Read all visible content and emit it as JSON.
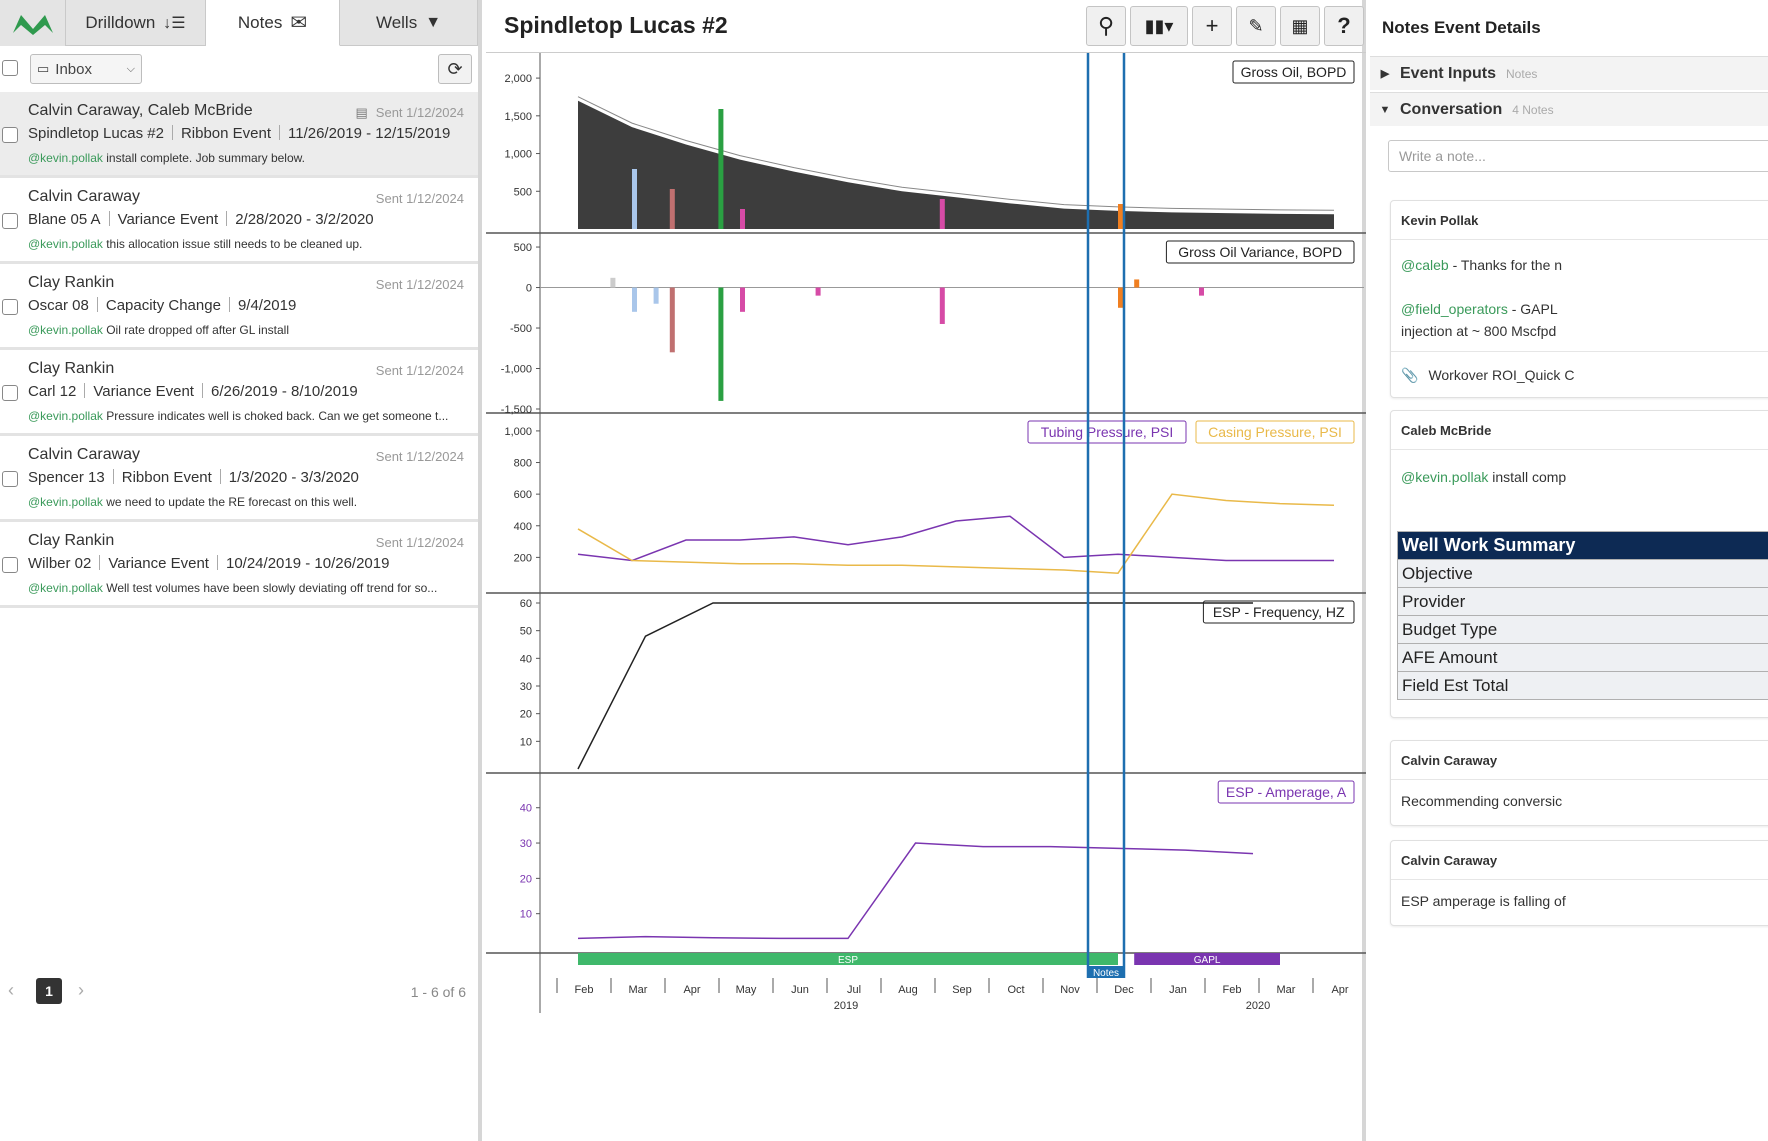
{
  "tabs": {
    "drilldown": "Drilldown",
    "notes": "Notes",
    "wells": "Wells"
  },
  "filter": {
    "inbox": "Inbox"
  },
  "notes": [
    {
      "who": "Calvin Caraway, Caleb McBride",
      "sent": "Sent 1/12/2024",
      "well": "Spindletop Lucas #2",
      "type": "Ribbon Event",
      "dates": "11/26/2019 - 12/15/2019",
      "mention": "@kevin.pollak",
      "msg": " install complete. Job summary below."
    },
    {
      "who": "Calvin Caraway",
      "sent": "Sent 1/12/2024",
      "well": "Blane 05 A",
      "type": "Variance Event",
      "dates": "2/28/2020 - 3/2/2020",
      "mention": "@kevin.pollak",
      "msg": " this allocation issue still needs to be cleaned up."
    },
    {
      "who": "Clay Rankin",
      "sent": "Sent 1/12/2024",
      "well": "Oscar 08",
      "type": "Capacity Change",
      "dates": "9/4/2019",
      "mention": "@kevin.pollak",
      "msg": " Oil rate dropped off after GL install"
    },
    {
      "who": "Clay Rankin",
      "sent": "Sent 1/12/2024",
      "well": "Carl 12",
      "type": "Variance Event",
      "dates": "6/26/2019 - 8/10/2019",
      "mention": "@kevin.pollak",
      "msg": " Pressure indicates well is choked back. Can we get someone t..."
    },
    {
      "who": "Calvin Caraway",
      "sent": "Sent 1/12/2024",
      "well": "Spencer 13",
      "type": "Ribbon Event",
      "dates": "1/3/2020 - 3/3/2020",
      "mention": "@kevin.pollak",
      "msg": " we need to update the RE forecast on this well."
    },
    {
      "who": "Clay Rankin",
      "sent": "Sent 1/12/2024",
      "well": "Wilber 02",
      "type": "Variance Event",
      "dates": "10/24/2019 - 10/26/2019",
      "mention": "@kevin.pollak",
      "msg": " Well test volumes have been slowly deviating off trend for so..."
    }
  ],
  "pager": {
    "page": "1",
    "count": "1 - 6 of 6"
  },
  "center": {
    "title": "Spindletop Lucas #2"
  },
  "chart_data": [
    {
      "type": "area",
      "title": "Gross Oil, BOPD",
      "yticks": [
        500,
        1000,
        1500,
        2000
      ],
      "ylim": [
        0,
        2200
      ],
      "x_months": [
        1,
        2,
        3,
        4,
        5,
        6,
        7,
        8,
        9,
        10,
        11,
        12,
        13,
        14,
        15
      ],
      "values": [
        1700,
        1350,
        1120,
        920,
        760,
        620,
        500,
        420,
        340,
        270,
        240,
        220,
        210,
        200,
        195
      ]
    },
    {
      "type": "bar",
      "title": "Gross Oil Variance, BOPD",
      "yticks": [
        500,
        0,
        -500,
        -1000,
        -1500
      ],
      "ylim": [
        -1500,
        550
      ]
    },
    {
      "type": "line",
      "series": [
        {
          "name": "Tubing Pressure, PSI",
          "color": "#7a35b0",
          "values": [
            220,
            180,
            310,
            310,
            330,
            280,
            330,
            430,
            460,
            200,
            220,
            200,
            180,
            180,
            180
          ]
        },
        {
          "name": "Casing Pressure, PSI",
          "color": "#e9b949",
          "values": [
            380,
            180,
            170,
            160,
            160,
            150,
            150,
            140,
            130,
            120,
            100,
            600,
            560,
            540,
            530
          ]
        }
      ],
      "yticks": [
        200,
        400,
        600,
        800,
        1000
      ],
      "ylim": [
        0,
        1050
      ]
    },
    {
      "type": "line",
      "title": "ESP - Frequency, HZ",
      "yticks": [
        10,
        20,
        30,
        40,
        50,
        60
      ],
      "ylim": [
        0,
        60
      ],
      "values": [
        0,
        48,
        60,
        60,
        60,
        60,
        60,
        60,
        60,
        60,
        60
      ]
    },
    {
      "type": "line",
      "title": "ESP - Amperage, A",
      "yticks": [
        10,
        20,
        30,
        40
      ],
      "ylim": [
        0,
        47
      ],
      "values": [
        3,
        3.5,
        3.2,
        3.0,
        3.0,
        30,
        29,
        29,
        28.5,
        28,
        27
      ]
    }
  ],
  "ribbon": {
    "esp": "ESP",
    "gapl": "GAPL",
    "notes": "Notes"
  },
  "xaxis": {
    "months": [
      "Feb",
      "Mar",
      "Apr",
      "May",
      "Jun",
      "Jul",
      "Aug",
      "Sep",
      "Oct",
      "Nov",
      "Dec",
      "Jan",
      "Feb",
      "Mar",
      "Apr"
    ],
    "years": [
      "2019",
      "2020"
    ]
  },
  "right": {
    "title": "Notes Event Details",
    "event_inputs": "Event Inputs",
    "event_inputs_sub": "Notes",
    "conversation": "Conversation",
    "conversation_sub": "4 Notes",
    "placeholder": "Write a note...",
    "cards": [
      {
        "author": "Kevin Pollak",
        "m1": "@caleb",
        "t1": " - Thanks for the n",
        "m2": "@field_operators",
        "t2": " - GAPL ",
        "t3": "injection at ~ 800 Mscfpd",
        "attach": "Workover ROI_Quick C"
      },
      {
        "author": "Caleb McBride",
        "m1": "@kevin.pollak",
        "t1": " install comp"
      },
      {
        "author": "Calvin Caraway",
        "t1": "Recommending conversic"
      },
      {
        "author": "Calvin Caraway",
        "t1": "ESP amperage is falling of"
      }
    ],
    "wws": [
      "Well Work Summary",
      "Objective",
      "Provider",
      "Budget Type",
      "AFE Amount",
      "Field Est Total"
    ]
  },
  "colors": {
    "accent": "#1e6fb0",
    "mention": "#3a9a5a",
    "esp": "#3fb86b",
    "gapl": "#7a35b0",
    "oil": "#444444"
  }
}
